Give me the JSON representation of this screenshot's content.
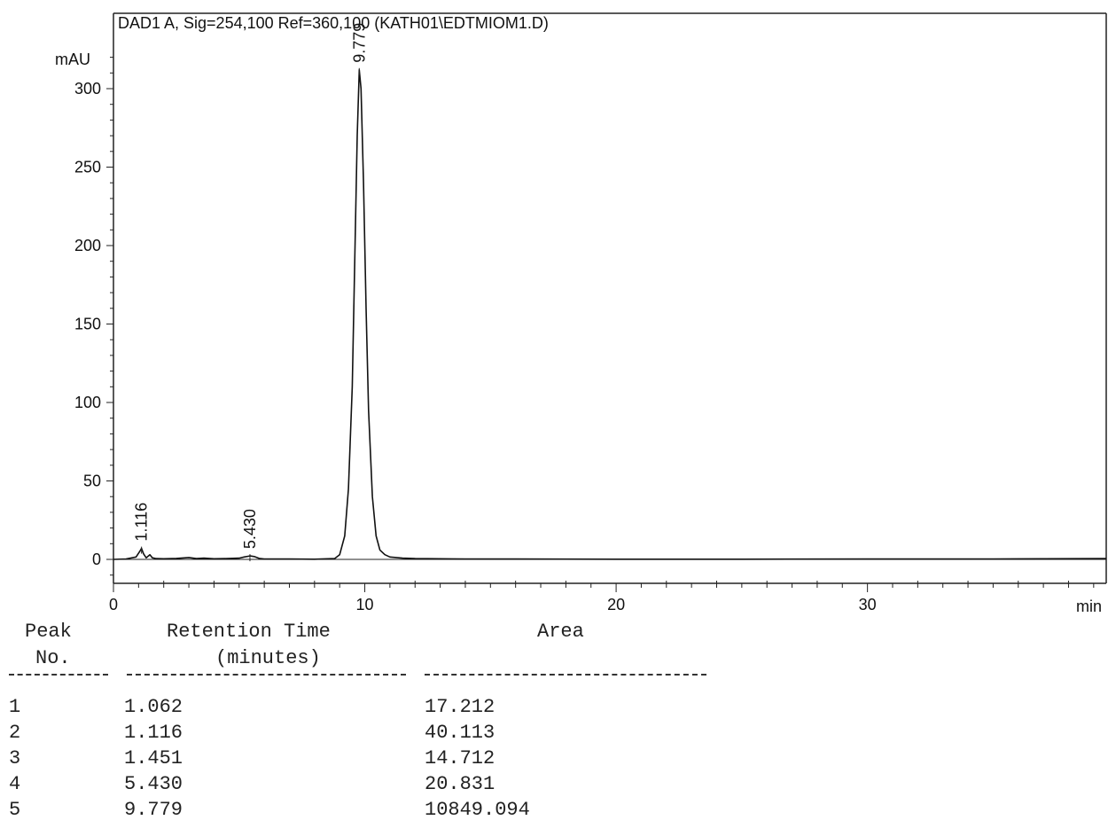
{
  "chart_data": {
    "type": "line",
    "title": "DAD1 A, Sig=254,100 Ref=360,100 (KATH01\\EDTMIOM1.D)",
    "ylabel": "mAU",
    "xlabel": "min",
    "xlim": [
      0,
      39.5
    ],
    "ylim": [
      -15,
      325
    ],
    "xticks": [
      0,
      10,
      20,
      30
    ],
    "yticks": [
      0,
      50,
      100,
      150,
      200,
      250,
      300
    ],
    "grid": false,
    "series": [
      {
        "x": [
          0,
          0.5,
          0.9,
          1.062,
          1.116,
          1.2,
          1.3,
          1.451,
          1.55,
          1.7,
          2.0,
          2.5,
          3.0,
          3.3,
          3.6,
          4.0,
          4.5,
          5.0,
          5.2,
          5.43,
          5.6,
          5.8,
          6.0,
          6.5,
          7.0,
          8.0,
          8.8,
          9.0,
          9.2,
          9.35,
          9.5,
          9.6,
          9.7,
          9.779,
          9.85,
          9.95,
          10.05,
          10.15,
          10.3,
          10.45,
          10.6,
          10.8,
          11.0,
          11.5,
          12.0,
          14.0,
          16.0,
          20.0,
          25.0,
          30.0,
          35.0,
          39.5
        ],
        "y": [
          0,
          0.3,
          1.5,
          5.5,
          7.0,
          3.5,
          1.0,
          3.0,
          1.0,
          0.5,
          0.4,
          0.6,
          1.2,
          0.5,
          0.8,
          0.4,
          0.5,
          0.8,
          1.5,
          2.2,
          1.8,
          0.6,
          0.3,
          0.2,
          0.2,
          0.1,
          0.5,
          3.0,
          15,
          45,
          110,
          190,
          270,
          312,
          300,
          240,
          160,
          95,
          40,
          15,
          6,
          3,
          1.5,
          0.8,
          0.5,
          0.3,
          0.2,
          0.1,
          0.1,
          0.2,
          0.3,
          0.5
        ]
      }
    ],
    "peak_labels": [
      {
        "x": 1.116,
        "y": 7,
        "text": "1.116"
      },
      {
        "x": 5.43,
        "y": 2.2,
        "text": "5.430"
      },
      {
        "x": 9.779,
        "y": 312,
        "text": "9.779"
      }
    ]
  },
  "table": {
    "header_line1": [
      "Peak",
      "Retention Time",
      "Area"
    ],
    "header_line2": [
      "No.",
      "(minutes)"
    ],
    "rows": [
      {
        "no": "1",
        "rt": "1.062",
        "area": "17.212"
      },
      {
        "no": "2",
        "rt": "1.116",
        "area": "40.113"
      },
      {
        "no": "3",
        "rt": "1.451",
        "area": "14.712"
      },
      {
        "no": "4",
        "rt": "5.430",
        "area": "20.831"
      },
      {
        "no": "5",
        "rt": "9.779",
        "area": "10849.094"
      }
    ]
  }
}
